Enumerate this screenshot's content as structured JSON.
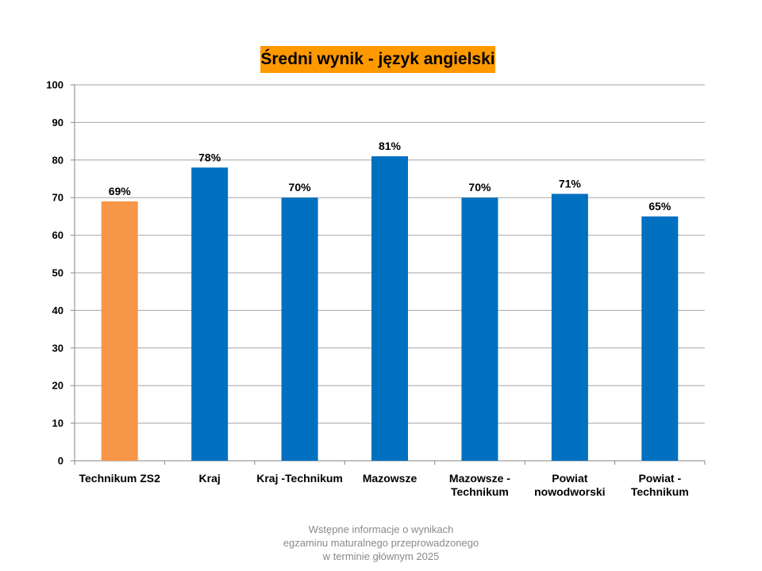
{
  "chart_data": {
    "type": "bar",
    "title": "Średni wynik - język angielski",
    "categories": [
      [
        "Technikum ZS2"
      ],
      [
        "Kraj"
      ],
      [
        "Kraj -Technikum"
      ],
      [
        "Mazowsze"
      ],
      [
        "Mazowsze -",
        "Technikum"
      ],
      [
        "Powiat",
        "nowodworski"
      ],
      [
        "Powiat -",
        "Technikum"
      ]
    ],
    "values": [
      69,
      78,
      70,
      81,
      70,
      71,
      65
    ],
    "data_labels": [
      "69%",
      "78%",
      "70%",
      "81%",
      "70%",
      "71%",
      "65%"
    ],
    "bar_colors": [
      "#f79646",
      "#0070c0",
      "#0070c0",
      "#0070c0",
      "#0070c0",
      "#0070c0",
      "#0070c0"
    ],
    "ylim": [
      0,
      100
    ],
    "yticks": [
      "0",
      "10",
      "20",
      "30",
      "40",
      "50",
      "60",
      "70",
      "80",
      "90",
      "100"
    ],
    "grid": true,
    "legend": "none",
    "xlabel": "",
    "ylabel": ""
  },
  "footer": {
    "line1": "Wstępne informacje o wynikach",
    "line2": "egzaminu maturalnego przeprowadzonego",
    "line3": "w terminie głównym 2025"
  },
  "colors": {
    "title_background": "#ff9900",
    "gridline": "#a6a6a6",
    "axis": "#868686",
    "footer_text": "#8a8a8a"
  }
}
